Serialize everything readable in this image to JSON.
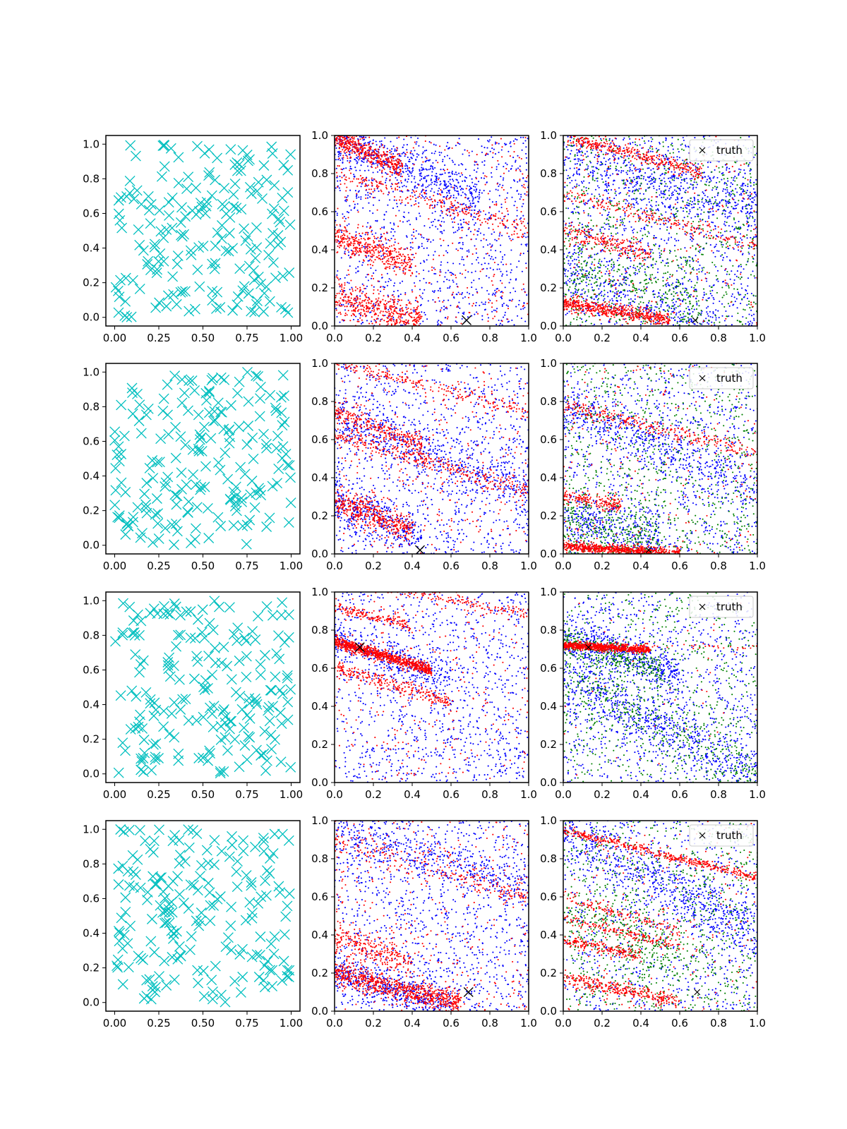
{
  "figure": {
    "layout": "4 rows x 3 columns",
    "colors": {
      "samples": "#00bfbf",
      "series_blue": "#0000ff",
      "series_red": "#ff0000",
      "series_green": "#008000",
      "truth": "#000000",
      "axes": "#000000",
      "background": "#ffffff"
    }
  },
  "chart_data": [
    {
      "panel": "r1c1",
      "type": "scatter",
      "marker": "x",
      "color": "#00bfbf",
      "n_points": 200,
      "xlim": [
        -0.05,
        1.05
      ],
      "ylim": [
        -0.05,
        1.05
      ],
      "xticks": [
        "0.00",
        "0.25",
        "0.50",
        "0.75",
        "1.00"
      ],
      "yticks": [
        "0.0",
        "0.2",
        "0.4",
        "0.6",
        "0.8",
        "1.0"
      ],
      "seed": 11
    },
    {
      "panel": "r1c2",
      "type": "scatter",
      "marker": ".",
      "xlim": [
        0,
        1
      ],
      "ylim": [
        0,
        1
      ],
      "xticks": [
        "0.0",
        "0.2",
        "0.4",
        "0.6",
        "0.8",
        "1.0"
      ],
      "yticks": [
        "0.0",
        "0.2",
        "0.4",
        "0.6",
        "0.8",
        "1.0"
      ],
      "seed": 12,
      "series": [
        {
          "name": "blue",
          "color": "#0000ff",
          "uniform": 1100,
          "bands": [
            {
              "y0": 0.98,
              "slope": -0.42,
              "xmax": 0.75,
              "width": 0.07,
              "n": 500
            }
          ]
        },
        {
          "name": "red",
          "color": "#ff0000",
          "uniform": 350,
          "bands": [
            {
              "y0": 1.0,
              "slope": -0.5,
              "xmax": 0.35,
              "width": 0.03,
              "n": 420
            },
            {
              "y0": 0.47,
              "slope": -0.35,
              "xmax": 0.4,
              "width": 0.04,
              "n": 380
            },
            {
              "y0": 0.15,
              "slope": -0.3,
              "xmax": 0.45,
              "width": 0.05,
              "n": 420
            },
            {
              "y0": 0.8,
              "slope": -0.3,
              "xmax": 1.0,
              "width": 0.025,
              "n": 220
            }
          ]
        }
      ],
      "truth": {
        "x": 0.68,
        "y": 0.03,
        "size": "large"
      }
    },
    {
      "panel": "r1c3",
      "type": "scatter",
      "marker": ".",
      "xlim": [
        0,
        1
      ],
      "ylim": [
        0,
        1
      ],
      "xticks": [
        "0.0",
        "0.2",
        "0.4",
        "0.6",
        "0.8",
        "1.0"
      ],
      "yticks": [
        "0.0",
        "0.2",
        "0.4",
        "0.6",
        "0.8",
        "1.0"
      ],
      "legend": {
        "label": "truth",
        "placement": "upper right"
      },
      "seed": 13,
      "series": [
        {
          "name": "blue",
          "color": "#0000ff",
          "uniform": 1100,
          "bands": [
            {
              "y0": 0.9,
              "slope": -0.3,
              "xmax": 1.0,
              "width": 0.09,
              "n": 500
            },
            {
              "y0": 0.3,
              "slope": -0.4,
              "xmax": 0.8,
              "width": 0.08,
              "n": 300
            }
          ]
        },
        {
          "name": "green",
          "color": "#008000",
          "uniform": 800,
          "bands": [
            {
              "y0": 0.35,
              "slope": -0.35,
              "xmax": 0.7,
              "width": 0.1,
              "n": 250
            }
          ]
        },
        {
          "name": "red",
          "color": "#ff0000",
          "uniform": 220,
          "bands": [
            {
              "y0": 0.12,
              "slope": -0.16,
              "xmax": 0.55,
              "width": 0.018,
              "n": 520
            },
            {
              "y0": 1.0,
              "slope": -0.28,
              "xmax": 0.72,
              "width": 0.02,
              "n": 360
            },
            {
              "y0": 0.5,
              "slope": -0.28,
              "xmax": 0.45,
              "width": 0.025,
              "n": 200
            },
            {
              "y0": 0.7,
              "slope": -0.28,
              "xmax": 1.0,
              "width": 0.02,
              "n": 200
            }
          ]
        }
      ],
      "truth": {
        "x": 0.68,
        "y": 0.03,
        "size": "small"
      }
    },
    {
      "panel": "r2c1",
      "type": "scatter",
      "marker": "x",
      "color": "#00bfbf",
      "n_points": 200,
      "xlim": [
        -0.05,
        1.05
      ],
      "ylim": [
        -0.05,
        1.05
      ],
      "xticks": [
        "0.00",
        "0.25",
        "0.50",
        "0.75",
        "1.00"
      ],
      "yticks": [
        "0.0",
        "0.2",
        "0.4",
        "0.6",
        "0.8",
        "1.0"
      ],
      "seed": 21
    },
    {
      "panel": "r2c2",
      "type": "scatter",
      "marker": ".",
      "xlim": [
        0,
        1
      ],
      "ylim": [
        0,
        1
      ],
      "xticks": [
        "0.0",
        "0.2",
        "0.4",
        "0.6",
        "0.8",
        "1.0"
      ],
      "yticks": [
        "0.0",
        "0.2",
        "0.4",
        "0.6",
        "0.8",
        "1.0"
      ],
      "seed": 22,
      "series": [
        {
          "name": "blue",
          "color": "#0000ff",
          "uniform": 1100,
          "bands": [
            {
              "y0": 0.72,
              "slope": -0.4,
              "xmax": 1.0,
              "width": 0.06,
              "n": 450
            },
            {
              "y0": 0.27,
              "slope": -0.35,
              "xmax": 0.45,
              "width": 0.05,
              "n": 300
            }
          ]
        },
        {
          "name": "red",
          "color": "#ff0000",
          "uniform": 300,
          "bands": [
            {
              "y0": 0.75,
              "slope": -0.4,
              "xmax": 0.45,
              "width": 0.025,
              "n": 260
            },
            {
              "y0": 0.63,
              "slope": -0.3,
              "xmax": 1.0,
              "width": 0.025,
              "n": 300
            },
            {
              "y0": 0.28,
              "slope": -0.4,
              "xmax": 0.4,
              "width": 0.04,
              "n": 400
            },
            {
              "y0": 1.0,
              "slope": -0.25,
              "xmax": 1.0,
              "width": 0.02,
              "n": 200
            }
          ]
        }
      ],
      "truth": {
        "x": 0.44,
        "y": 0.02,
        "size": "large"
      }
    },
    {
      "panel": "r2c3",
      "type": "scatter",
      "marker": ".",
      "xlim": [
        0,
        1
      ],
      "ylim": [
        0,
        1
      ],
      "xticks": [
        "0.0",
        "0.2",
        "0.4",
        "0.6",
        "0.8",
        "1.0"
      ],
      "yticks": [
        "0.0",
        "0.2",
        "0.4",
        "0.6",
        "0.8",
        "1.0"
      ],
      "legend": {
        "label": "truth",
        "placement": "upper right"
      },
      "seed": 23,
      "series": [
        {
          "name": "blue",
          "color": "#0000ff",
          "uniform": 900,
          "bands": [
            {
              "y0": 0.78,
              "slope": -0.45,
              "xmax": 1.0,
              "width": 0.07,
              "n": 500
            },
            {
              "y0": 0.2,
              "slope": -0.25,
              "xmax": 0.5,
              "width": 0.08,
              "n": 300
            }
          ]
        },
        {
          "name": "green",
          "color": "#008000",
          "uniform": 800,
          "bands": [
            {
              "y0": 0.15,
              "slope": -0.2,
              "xmax": 0.5,
              "width": 0.1,
              "n": 300
            }
          ]
        },
        {
          "name": "red",
          "color": "#ff0000",
          "uniform": 200,
          "bands": [
            {
              "y0": 0.04,
              "slope": -0.06,
              "xmax": 0.6,
              "width": 0.012,
              "n": 650
            },
            {
              "y0": 0.78,
              "slope": -0.25,
              "xmax": 1.0,
              "width": 0.02,
              "n": 260
            },
            {
              "y0": 0.3,
              "slope": -0.15,
              "xmax": 0.3,
              "width": 0.02,
              "n": 160
            }
          ]
        }
      ],
      "truth": {
        "x": 0.44,
        "y": 0.02,
        "size": "small"
      }
    },
    {
      "panel": "r3c1",
      "type": "scatter",
      "marker": "x",
      "color": "#00bfbf",
      "n_points": 200,
      "xlim": [
        -0.05,
        1.05
      ],
      "ylim": [
        -0.05,
        1.05
      ],
      "xticks": [
        "0.00",
        "0.25",
        "0.50",
        "0.75",
        "1.00"
      ],
      "yticks": [
        "0.0",
        "0.2",
        "0.4",
        "0.6",
        "0.8",
        "1.0"
      ],
      "seed": 31
    },
    {
      "panel": "r3c2",
      "type": "scatter",
      "marker": ".",
      "xlim": [
        0,
        1
      ],
      "ylim": [
        0,
        1
      ],
      "xticks": [
        "0.0",
        "0.2",
        "0.4",
        "0.6",
        "0.8",
        "1.0"
      ],
      "yticks": [
        "0.0",
        "0.2",
        "0.4",
        "0.6",
        "0.8",
        "1.0"
      ],
      "seed": 32,
      "series": [
        {
          "name": "blue",
          "color": "#0000ff",
          "uniform": 1100,
          "bands": [
            {
              "y0": 0.76,
              "slope": -0.35,
              "xmax": 0.6,
              "width": 0.05,
              "n": 300
            }
          ]
        },
        {
          "name": "red",
          "color": "#ff0000",
          "uniform": 250,
          "bands": [
            {
              "y0": 0.74,
              "slope": -0.3,
              "xmax": 0.5,
              "width": 0.015,
              "n": 850
            },
            {
              "y0": 0.6,
              "slope": -0.3,
              "xmax": 0.6,
              "width": 0.02,
              "n": 250
            },
            {
              "y0": 0.92,
              "slope": -0.25,
              "xmax": 0.4,
              "width": 0.015,
              "n": 150
            },
            {
              "y0": 1.08,
              "slope": -0.2,
              "xmax": 1.0,
              "width": 0.015,
              "n": 200
            }
          ]
        }
      ],
      "truth": {
        "x": 0.13,
        "y": 0.71,
        "size": "large"
      }
    },
    {
      "panel": "r3c3",
      "type": "scatter",
      "marker": ".",
      "xlim": [
        0,
        1
      ],
      "ylim": [
        0,
        1
      ],
      "xticks": [
        "0.0",
        "0.2",
        "0.4",
        "0.6",
        "0.8",
        "1.0"
      ],
      "yticks": [
        "0.0",
        "0.2",
        "0.4",
        "0.6",
        "0.8",
        "1.0"
      ],
      "legend": {
        "label": "truth",
        "placement": "upper right"
      },
      "seed": 33,
      "series": [
        {
          "name": "blue",
          "color": "#0000ff",
          "uniform": 900,
          "bands": [
            {
              "y0": 0.76,
              "slope": -0.3,
              "xmax": 0.6,
              "width": 0.06,
              "n": 500
            },
            {
              "y0": 0.55,
              "slope": -0.5,
              "xmax": 1.0,
              "width": 0.08,
              "n": 600
            }
          ]
        },
        {
          "name": "green",
          "color": "#008000",
          "uniform": 600,
          "bands": [
            {
              "y0": 0.74,
              "slope": -0.3,
              "xmax": 0.5,
              "width": 0.04,
              "n": 300
            },
            {
              "y0": 0.55,
              "slope": -0.5,
              "xmax": 1.0,
              "width": 0.08,
              "n": 300
            }
          ]
        },
        {
          "name": "red",
          "color": "#ff0000",
          "uniform": 40,
          "bands": [
            {
              "y0": 0.72,
              "slope": -0.05,
              "xmax": 0.45,
              "width": 0.01,
              "n": 700
            },
            {
              "y0": 0.73,
              "slope": -0.02,
              "xmax": 1.0,
              "width": 0.008,
              "n": 60
            }
          ]
        }
      ],
      "truth": {
        "x": 0.13,
        "y": 0.71,
        "size": "small"
      }
    },
    {
      "panel": "r4c1",
      "type": "scatter",
      "marker": "x",
      "color": "#00bfbf",
      "n_points": 200,
      "xlim": [
        -0.05,
        1.05
      ],
      "ylim": [
        -0.05,
        1.05
      ],
      "xticks": [
        "0.00",
        "0.25",
        "0.50",
        "0.75",
        "1.00"
      ],
      "yticks": [
        "0.0",
        "0.2",
        "0.4",
        "0.6",
        "0.8",
        "1.0"
      ],
      "seed": 41
    },
    {
      "panel": "r4c2",
      "type": "scatter",
      "marker": ".",
      "xlim": [
        0,
        1
      ],
      "ylim": [
        0,
        1
      ],
      "xticks": [
        "0.0",
        "0.2",
        "0.4",
        "0.6",
        "0.8",
        "1.0"
      ],
      "yticks": [
        "0.0",
        "0.2",
        "0.4",
        "0.6",
        "0.8",
        "1.0"
      ],
      "seed": 42,
      "series": [
        {
          "name": "blue",
          "color": "#0000ff",
          "uniform": 1100,
          "bands": [
            {
              "y0": 0.95,
              "slope": -0.3,
              "xmax": 1.0,
              "width": 0.06,
              "n": 350
            },
            {
              "y0": 0.2,
              "slope": -0.3,
              "xmax": 0.6,
              "width": 0.05,
              "n": 450
            }
          ]
        },
        {
          "name": "red",
          "color": "#ff0000",
          "uniform": 350,
          "bands": [
            {
              "y0": 0.2,
              "slope": -0.25,
              "xmax": 0.65,
              "width": 0.03,
              "n": 700
            },
            {
              "y0": 0.38,
              "slope": -0.3,
              "xmax": 0.4,
              "width": 0.04,
              "n": 250
            },
            {
              "y0": 0.9,
              "slope": -0.3,
              "xmax": 1.0,
              "width": 0.03,
              "n": 200
            }
          ]
        }
      ],
      "truth": {
        "x": 0.69,
        "y": 0.1,
        "size": "large"
      }
    },
    {
      "panel": "r4c3",
      "type": "scatter",
      "marker": ".",
      "xlim": [
        0,
        1
      ],
      "ylim": [
        0,
        1
      ],
      "xticks": [
        "0.0",
        "0.2",
        "0.4",
        "0.6",
        "0.8",
        "1.0"
      ],
      "yticks": [
        "0.0",
        "0.2",
        "0.4",
        "0.6",
        "0.8",
        "1.0"
      ],
      "legend": {
        "label": "truth",
        "placement": "upper right"
      },
      "seed": 43,
      "series": [
        {
          "name": "blue",
          "color": "#0000ff",
          "uniform": 800,
          "bands": [
            {
              "y0": 0.95,
              "slope": -0.55,
              "xmax": 1.0,
              "width": 0.08,
              "n": 650
            }
          ]
        },
        {
          "name": "green",
          "color": "#008000",
          "uniform": 800,
          "bands": [
            {
              "y0": 0.5,
              "slope": -0.4,
              "xmax": 0.6,
              "width": 0.1,
              "n": 250
            }
          ]
        },
        {
          "name": "red",
          "color": "#ff0000",
          "uniform": 200,
          "bands": [
            {
              "y0": 0.95,
              "slope": -0.25,
              "xmax": 1.0,
              "width": 0.012,
              "n": 420
            },
            {
              "y0": 0.37,
              "slope": -0.2,
              "xmax": 0.4,
              "width": 0.015,
              "n": 180
            },
            {
              "y0": 0.49,
              "slope": -0.25,
              "xmax": 0.6,
              "width": 0.015,
              "n": 150
            },
            {
              "y0": 0.17,
              "slope": -0.2,
              "xmax": 0.6,
              "width": 0.02,
              "n": 300
            },
            {
              "y0": 0.6,
              "slope": -0.3,
              "xmax": 0.6,
              "width": 0.015,
              "n": 120
            }
          ]
        }
      ],
      "truth": {
        "x": 0.69,
        "y": 0.1,
        "size": "small"
      }
    }
  ]
}
